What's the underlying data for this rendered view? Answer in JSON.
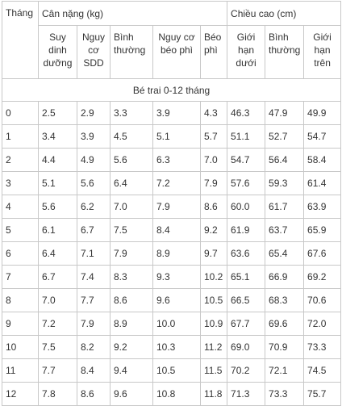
{
  "table": {
    "header": {
      "month": "Tháng",
      "weight_group": "Cân nặng (kg)",
      "height_group": "Chiều cao (cm)",
      "weight_cols": [
        "Suy dinh dưỡng",
        "Nguy cơ SDD",
        "Bình thường",
        "Nguy cơ béo phì",
        "Béo phì"
      ],
      "height_cols": [
        "Giới hạn dưới",
        "Bình thường",
        "Giới hạn trên"
      ]
    },
    "section_label": "Bé trai 0-12 tháng",
    "rows": [
      [
        "0",
        "2.5",
        "2.9",
        "3.3",
        "3.9",
        "4.3",
        "46.3",
        "47.9",
        "49.9"
      ],
      [
        "1",
        "3.4",
        "3.9",
        "4.5",
        "5.1",
        "5.7",
        "51.1",
        "52.7",
        "54.7"
      ],
      [
        "2",
        "4.4",
        "4.9",
        "5.6",
        "6.3",
        "7.0",
        "54.7",
        "56.4",
        "58.4"
      ],
      [
        "3",
        "5.1",
        "5.6",
        "6.4",
        "7.2",
        "7.9",
        "57.6",
        "59.3",
        "61.4"
      ],
      [
        "4",
        "5.6",
        "6.2",
        "7.0",
        "7.9",
        "8.6",
        "60.0",
        "61.7",
        "63.9"
      ],
      [
        "5",
        "6.1",
        "6.7",
        "7.5",
        "8.4",
        "9.2",
        "61.9",
        "63.7",
        "65.9"
      ],
      [
        "6",
        "6.4",
        "7.1",
        "7.9",
        "8.9",
        "9.7",
        "63.6",
        "65.4",
        "67.6"
      ],
      [
        "7",
        "6.7",
        "7.4",
        "8.3",
        "9.3",
        "10.2",
        "65.1",
        "66.9",
        "69.2"
      ],
      [
        "8",
        "7.0",
        "7.7",
        "8.6",
        "9.6",
        "10.5",
        "66.5",
        "68.3",
        "70.6"
      ],
      [
        "9",
        "7.2",
        "7.9",
        "8.9",
        "10.0",
        "10.9",
        "67.7",
        "69.6",
        "72.0"
      ],
      [
        "10",
        "7.5",
        "8.2",
        "9.2",
        "10.3",
        "11.2",
        "69.0",
        "70.9",
        "73.3"
      ],
      [
        "11",
        "7.7",
        "8.4",
        "9.4",
        "10.5",
        "11.5",
        "70.2",
        "72.1",
        "74.5"
      ],
      [
        "12",
        "7.8",
        "8.6",
        "9.6",
        "10.8",
        "11.8",
        "71.3",
        "73.3",
        "75.7"
      ]
    ]
  }
}
